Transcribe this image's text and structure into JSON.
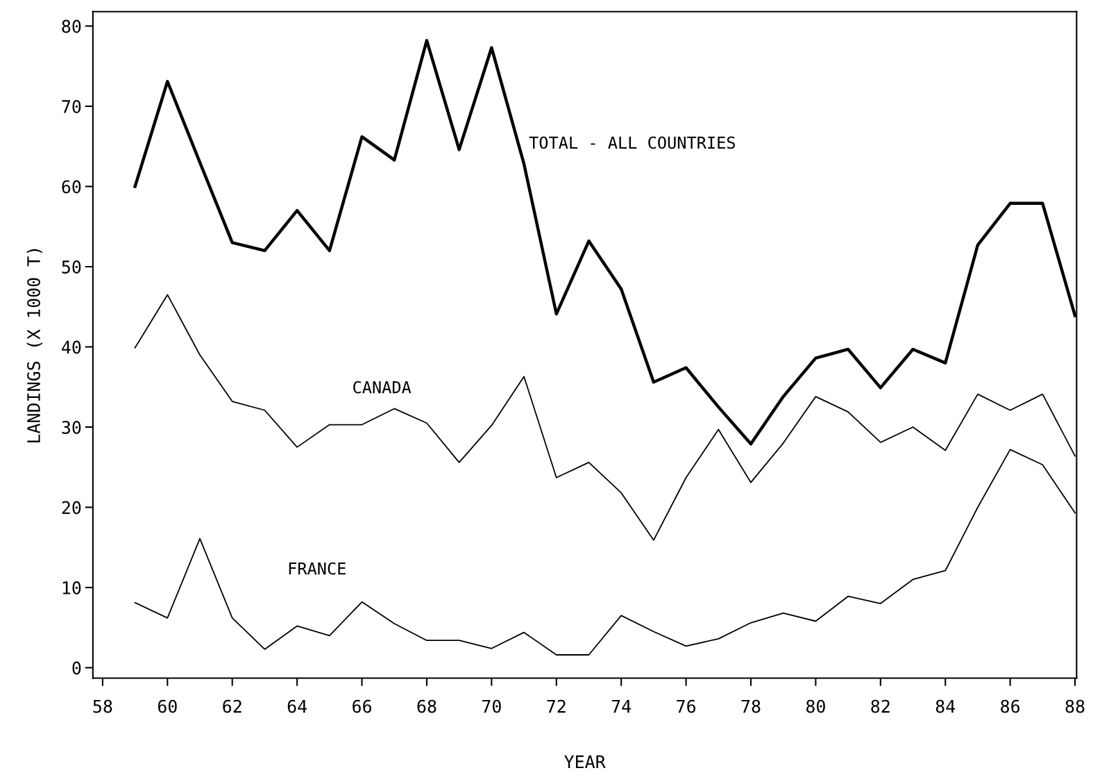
{
  "chart_data": {
    "type": "line",
    "xlabel": "YEAR",
    "ylabel": "LANDINGS (X 1000 T)",
    "x": [
      59,
      60,
      61,
      62,
      63,
      64,
      65,
      66,
      67,
      68,
      69,
      70,
      71,
      72,
      73,
      74,
      75,
      76,
      77,
      78,
      79,
      80,
      81,
      82,
      83,
      84,
      85,
      86,
      87,
      88
    ],
    "series": [
      {
        "name": "TOTAL - ALL COUNTRIES",
        "color": "#000000",
        "values": [
          60,
          73.1,
          63,
          53,
          52,
          57,
          52,
          66.2,
          63.3,
          78.2,
          64.6,
          77.3,
          62.8,
          44.1,
          53.2,
          47.2,
          35.6,
          37.4,
          32.5,
          27.9,
          33.8,
          38.6,
          39.7,
          34.9,
          39.7,
          38,
          52.7,
          57.9,
          57.9,
          43.9
        ]
      },
      {
        "name": "CANADA",
        "color": "#000000",
        "values": [
          39.9,
          46.5,
          39,
          33.2,
          32.1,
          27.5,
          30.3,
          30.3,
          32.3,
          30.5,
          25.6,
          30.2,
          36.3,
          23.7,
          25.6,
          21.8,
          15.9,
          23.7,
          29.7,
          23.1,
          28,
          33.8,
          31.9,
          28.1,
          30,
          27.1,
          34.1,
          32.1,
          34.1,
          26.4
        ]
      },
      {
        "name": "FRANCE",
        "color": "#000000",
        "values": [
          8.1,
          6.2,
          16.1,
          6.2,
          2.3,
          5.2,
          4,
          8.2,
          5.5,
          3.4,
          3.4,
          2.4,
          4.4,
          1.6,
          1.6,
          6.5,
          4.5,
          2.7,
          3.6,
          5.6,
          6.8,
          5.8,
          8.9,
          8,
          11,
          12.1,
          20,
          27.2,
          25.3,
          19.3
        ]
      }
    ],
    "xlim": [
      57.7,
      88.05
    ],
    "ylim": [
      -1.3,
      81.8
    ],
    "xticks": [
      58,
      60,
      62,
      64,
      66,
      68,
      70,
      72,
      74,
      76,
      78,
      80,
      82,
      84,
      86,
      88
    ],
    "yticks": [
      0,
      10,
      20,
      30,
      40,
      50,
      60,
      70,
      80
    ],
    "grid": false,
    "legend": false,
    "marker": "none",
    "line_style": "solid"
  }
}
